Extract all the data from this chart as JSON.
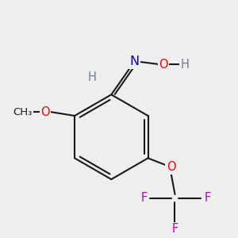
{
  "bg_color": "#efefef",
  "bond_color": "#1a1a1a",
  "atom_colors": {
    "O": "#ff0000",
    "N": "#0000cc",
    "F": "#bb00bb",
    "H": "#708090",
    "C": "#1a1a1a"
  },
  "lw": 1.5,
  "fs": 10.5
}
